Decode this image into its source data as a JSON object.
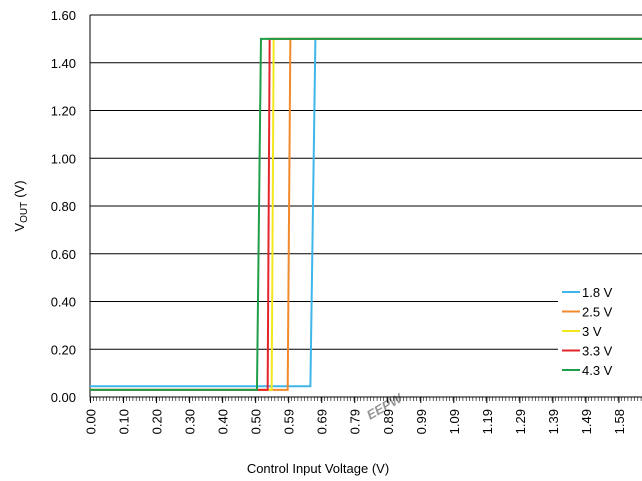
{
  "chart_data": {
    "type": "line",
    "y_label": [
      "V",
      "OUT",
      "(V)"
    ],
    "x_label": "Control Input Voltage (V)",
    "watermark": "EEPW",
    "xlim": [
      0,
      1.653
    ],
    "ylim": [
      0,
      1.6
    ],
    "xticks": [
      {
        "value": 0.00155,
        "label": "0.00"
      },
      {
        "value": 0.10045,
        "label": "0.10"
      },
      {
        "value": 0.19935,
        "label": "0.20"
      },
      {
        "value": 0.29825,
        "label": "0.30"
      },
      {
        "value": 0.39715,
        "label": "0.40"
      },
      {
        "value": 0.49605,
        "label": "0.50"
      },
      {
        "value": 0.59495,
        "label": "0.59"
      },
      {
        "value": 0.69385,
        "label": "0.69"
      },
      {
        "value": 0.79275,
        "label": "0.79"
      },
      {
        "value": 0.89165,
        "label": "0.89"
      },
      {
        "value": 0.99055,
        "label": "0.99"
      },
      {
        "value": 1.08945,
        "label": "1.09"
      },
      {
        "value": 1.18835,
        "label": "1.19"
      },
      {
        "value": 1.28725,
        "label": "1.29"
      },
      {
        "value": 1.38615,
        "label": "1.39"
      },
      {
        "value": 1.48505,
        "label": "1.49"
      },
      {
        "value": 1.58395,
        "label": "1.58"
      }
    ],
    "yticks": [
      {
        "value": 0,
        "label": "0.00"
      },
      {
        "value": 0.2,
        "label": "0.20"
      },
      {
        "value": 0.4,
        "label": "0.40"
      },
      {
        "value": 0.6,
        "label": "0.60"
      },
      {
        "value": 0.8,
        "label": "0.80"
      },
      {
        "value": 1.0,
        "label": "1.00"
      },
      {
        "value": 1.2,
        "label": "1.20"
      },
      {
        "value": 1.4,
        "label": "1.40"
      },
      {
        "value": 1.6,
        "label": "1.60"
      }
    ],
    "grid": true,
    "legend": "lower right",
    "series": [
      {
        "name": "1.8 V",
        "color": "#3fb5ea",
        "x": [
          0,
          0.66,
          0.675,
          1.653
        ],
        "values": [
          0.045,
          0.045,
          1.5,
          1.5
        ]
      },
      {
        "name": "2.5 V",
        "color": "#f08a2c",
        "x": [
          0,
          0.592,
          0.6,
          1.653
        ],
        "values": [
          0.03,
          0.03,
          1.5,
          1.5
        ]
      },
      {
        "name": "3 V",
        "color": "#f4e81c",
        "x": [
          0,
          0.544,
          0.55,
          1.653
        ],
        "values": [
          0.03,
          0.03,
          1.5,
          1.5
        ]
      },
      {
        "name": "3.3 V",
        "color": "#e3242b",
        "x": [
          0,
          0.532,
          0.538,
          1.653
        ],
        "values": [
          0.03,
          0.03,
          1.5,
          1.5
        ]
      },
      {
        "name": "4.3 V",
        "color": "#1f9e48",
        "x": [
          0,
          0.5,
          0.512,
          1.653
        ],
        "values": [
          0.03,
          0.03,
          1.5,
          1.5
        ]
      }
    ]
  }
}
